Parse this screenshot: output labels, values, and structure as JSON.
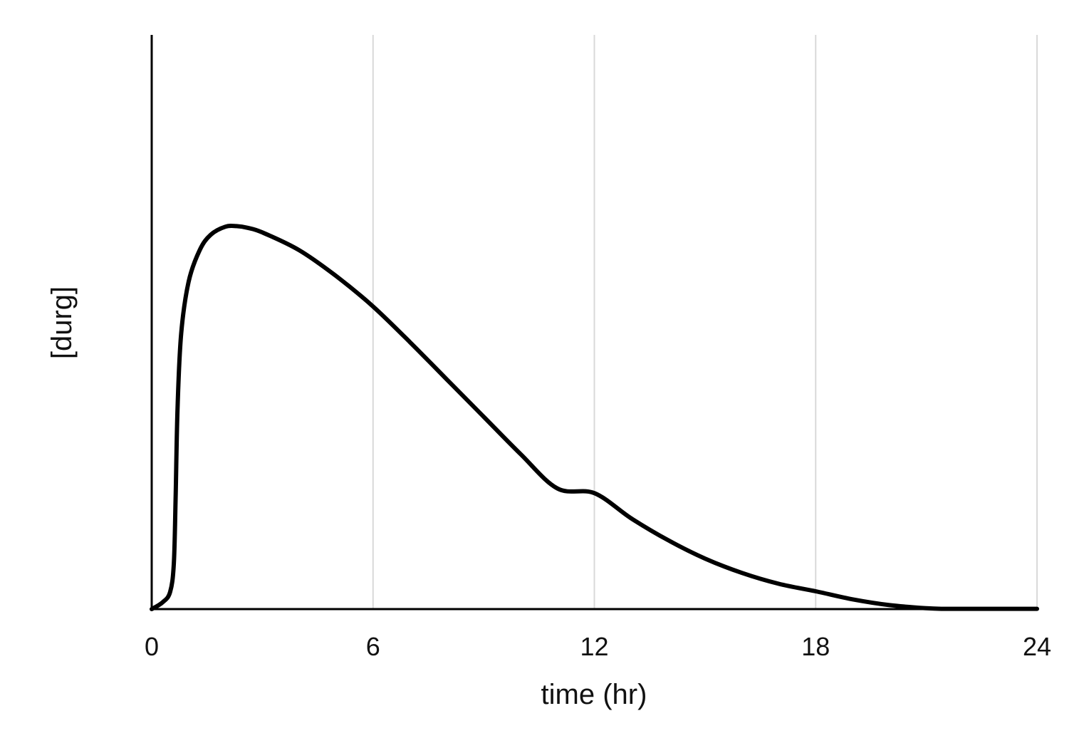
{
  "chart_data": {
    "type": "line",
    "title": "",
    "xlabel": "time (hr)",
    "ylabel": "[durg]",
    "xlim": [
      0,
      24
    ],
    "ylim": [
      0,
      100
    ],
    "x_ticks": [
      0,
      6,
      12,
      18,
      24
    ],
    "x_tick_labels": [
      "0",
      "6",
      "12",
      "18",
      "24"
    ],
    "y_ticks": [],
    "grid": {
      "vertical": true,
      "horizontal": false,
      "color": "#d9d9d9"
    },
    "legend": null,
    "series": [
      {
        "name": "[durg]",
        "color": "#000000",
        "x": [
          0,
          0.3,
          0.5,
          0.6,
          0.65,
          0.7,
          0.8,
          1.0,
          1.3,
          1.6,
          2.0,
          2.3,
          2.6,
          3.0,
          4.0,
          5.0,
          6.0,
          7.0,
          8.0,
          9.0,
          10.0,
          11.0,
          12.0,
          13.0,
          14.0,
          15.0,
          16.0,
          17.0,
          18.0,
          19.0,
          20.0,
          21.0,
          21.5,
          22.0,
          23.0,
          24.0
        ],
        "values": [
          0,
          1.2,
          3.0,
          8.0,
          20.0,
          35.0,
          48.0,
          57.0,
          62.5,
          65.2,
          66.6,
          66.7,
          66.4,
          65.6,
          62.5,
          58.0,
          52.7,
          46.5,
          40.0,
          33.5,
          27.0,
          21.0,
          20.2,
          15.8,
          12.0,
          8.8,
          6.3,
          4.4,
          3.1,
          1.7,
          0.7,
          0.15,
          0.05,
          0.05,
          0.05,
          0.05
        ]
      }
    ]
  },
  "axes": {
    "x_title": "time (hr)",
    "y_title": "[durg]",
    "x_tick_labels": [
      "0",
      "6",
      "12",
      "18",
      "24"
    ]
  }
}
